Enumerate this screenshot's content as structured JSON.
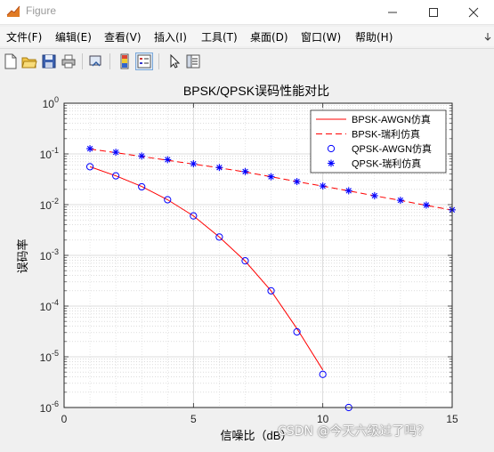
{
  "window": {
    "title": "Figure",
    "icon": "matlab-figure-icon"
  },
  "menu": [
    {
      "label": "文件(F)"
    },
    {
      "label": "编辑(E)"
    },
    {
      "label": "查看(V)"
    },
    {
      "label": "插入(I)"
    },
    {
      "label": "工具(T)"
    },
    {
      "label": "桌面(D)"
    },
    {
      "label": "窗口(W)"
    },
    {
      "label": "帮助(H)"
    }
  ],
  "toolbar": [
    "new-figure-icon",
    "open-file-icon",
    "save-icon",
    "print-icon",
    "link-plot-icon",
    "insert-colorbar-icon",
    "insert-legend-icon",
    "edit-plot-icon",
    "property-inspector-icon"
  ],
  "colors": {
    "bpsk_awgn": "#ff0000",
    "bpsk_rayleigh": "#ff0000",
    "qpsk_markers": "#0000ff",
    "axes_bg": "#ffffff",
    "figure_bg": "#f0f0f0"
  },
  "watermark": "CSDN @今天六级过了吗？",
  "chart_data": {
    "type": "line",
    "title": "BPSK/QPSK误码性能对比",
    "xlabel": "信噪比（dB）",
    "ylabel": "误码率",
    "xlim": [
      0,
      15
    ],
    "ylim": [
      1e-06,
      1
    ],
    "yscale": "log",
    "grid": true,
    "minor_grid": true,
    "legend_location": "top-right",
    "x_ticks": [
      {
        "value": 0,
        "label": "0"
      },
      {
        "value": 5,
        "label": "5"
      },
      {
        "value": 10,
        "label": "10"
      },
      {
        "value": 15,
        "label": "15"
      }
    ],
    "y_ticks": [
      {
        "value": 1,
        "base": "10",
        "exp": "0"
      },
      {
        "value": 0.1,
        "base": "10",
        "exp": "-1"
      },
      {
        "value": 0.01,
        "base": "10",
        "exp": "-2"
      },
      {
        "value": 0.001,
        "base": "10",
        "exp": "-3"
      },
      {
        "value": 0.0001,
        "base": "10",
        "exp": "-4"
      },
      {
        "value": 1e-05,
        "base": "10",
        "exp": "-5"
      },
      {
        "value": 1e-06,
        "base": "10",
        "exp": "-6"
      }
    ],
    "series": [
      {
        "name": "BPSK-AWGN仿真",
        "style": "line",
        "dash": "solid",
        "color": "#ff0000",
        "x": [
          1,
          2,
          3,
          4,
          5,
          6,
          7,
          8,
          9,
          10
        ],
        "y": [
          0.056,
          0.037,
          0.0228,
          0.0125,
          0.006,
          0.0023,
          0.00077,
          0.0002,
          3.6e-05,
          5.5e-06
        ]
      },
      {
        "name": "BPSK-瑞利仿真",
        "style": "line",
        "dash": "dashed",
        "color": "#ff0000",
        "x": [
          1,
          2,
          3,
          4,
          5,
          6,
          7,
          8,
          9,
          10,
          11,
          12,
          13,
          14,
          15
        ],
        "y": [
          0.125,
          0.106,
          0.089,
          0.075,
          0.063,
          0.053,
          0.044,
          0.0355,
          0.0285,
          0.0232,
          0.0187,
          0.015,
          0.0121,
          0.0097,
          0.0078
        ]
      },
      {
        "name": "QPSK-AWGN仿真",
        "style": "markers",
        "marker": "circle",
        "color": "#0000ff",
        "x": [
          1,
          2,
          3,
          4,
          5,
          6,
          7,
          8,
          9,
          10,
          11
        ],
        "y": [
          0.056,
          0.037,
          0.0225,
          0.0125,
          0.006,
          0.0023,
          0.00078,
          0.0002,
          3.1e-05,
          4.5e-06,
          1e-06
        ]
      },
      {
        "name": "QPSK-瑞利仿真",
        "style": "markers",
        "marker": "asterisk",
        "color": "#0000ff",
        "x": [
          1,
          2,
          3,
          4,
          5,
          6,
          7,
          8,
          9,
          10,
          11,
          12,
          13,
          14,
          15
        ],
        "y": [
          0.127,
          0.108,
          0.091,
          0.077,
          0.064,
          0.054,
          0.045,
          0.0355,
          0.0285,
          0.0233,
          0.0188,
          0.015,
          0.0122,
          0.0098,
          0.0079
        ]
      }
    ]
  }
}
